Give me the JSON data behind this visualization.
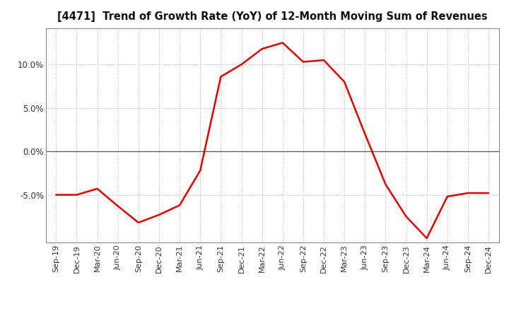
{
  "title": "[4471]  Trend of Growth Rate (YoY) of 12-Month Moving Sum of Revenues",
  "line_color": "#dd0000",
  "line_width": 1.8,
  "background_color": "#ffffff",
  "plot_bg_color": "#ffffff",
  "grid_color": "#999999",
  "ylim": [
    -0.105,
    0.142
  ],
  "yticks": [
    -0.05,
    0.0,
    0.05,
    0.1
  ],
  "x_labels": [
    "Sep-19",
    "Dec-19",
    "Mar-20",
    "Jun-20",
    "Sep-20",
    "Dec-20",
    "Mar-21",
    "Jun-21",
    "Sep-21",
    "Dec-21",
    "Mar-22",
    "Jun-22",
    "Sep-22",
    "Dec-22",
    "Mar-23",
    "Jun-23",
    "Sep-23",
    "Dec-23",
    "Mar-24",
    "Jun-24",
    "Sep-24",
    "Dec-24"
  ],
  "values": [
    -0.05,
    -0.05,
    -0.043,
    -0.063,
    -0.082,
    -0.073,
    -0.062,
    -0.022,
    0.086,
    0.1,
    0.118,
    0.125,
    0.103,
    0.105,
    0.08,
    0.02,
    -0.038,
    -0.075,
    -0.1,
    -0.052,
    -0.048,
    -0.048
  ],
  "title_fontsize": 10.5,
  "tick_fontsize": 8.0,
  "ytick_fontsize": 8.5
}
